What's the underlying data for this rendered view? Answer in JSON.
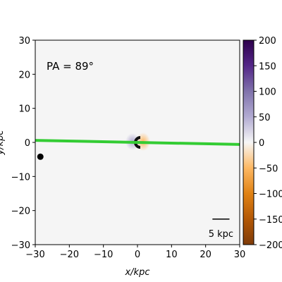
{
  "chart_data": {
    "type": "map",
    "xlabel": "x/kpc",
    "ylabel": "y/kpc",
    "xlim": [
      -30,
      30
    ],
    "ylim": [
      -30,
      30
    ],
    "xticks": [
      {
        "value": -30,
        "label": "−30"
      },
      {
        "value": -20,
        "label": "−20"
      },
      {
        "value": -10,
        "label": "−10"
      },
      0,
      10,
      20,
      30
    ],
    "yticks": [
      {
        "value": -30,
        "label": "−30"
      },
      {
        "value": -20,
        "label": "−20"
      },
      {
        "value": -10,
        "label": "−10"
      },
      0,
      10,
      20,
      30
    ],
    "annotation": "PA = 89°",
    "pa_line": {
      "x": [
        -30,
        30
      ],
      "y": [
        0.6,
        -0.6
      ],
      "color": "#33cc33"
    },
    "marker": {
      "x": -28.5,
      "y": -4.2,
      "color": "#000000"
    },
    "scale_bar": {
      "x": [
        22,
        27
      ],
      "y": -22.5,
      "label": "5 kpc"
    },
    "colorbar": {
      "lim": [
        -200,
        200
      ],
      "ticks": [
        {
          "value": -200,
          "label": "−200"
        },
        {
          "value": -150,
          "label": "−150"
        },
        {
          "value": -100,
          "label": "−100"
        },
        {
          "value": -50,
          "label": "−50"
        },
        0,
        50,
        100,
        150,
        200
      ],
      "colors": [
        "#7f3b08",
        "#b35806",
        "#e08214",
        "#fdb863",
        "#f7f7f7",
        "#b2abd2",
        "#8073ac",
        "#542788",
        "#2d004b"
      ]
    }
  }
}
